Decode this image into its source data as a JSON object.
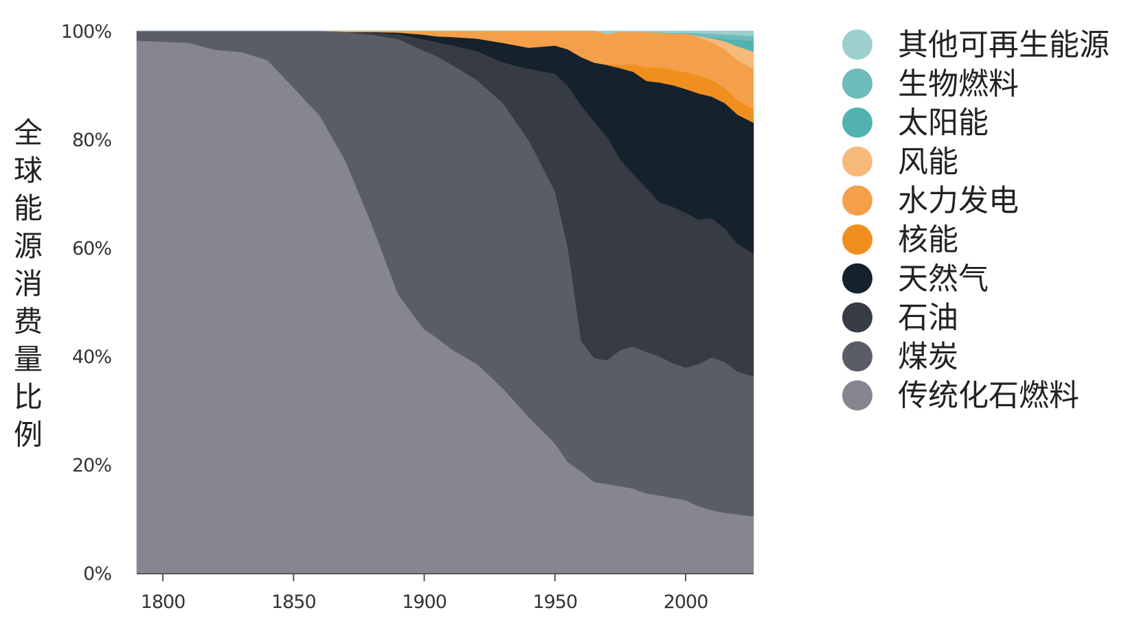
{
  "chart_data": {
    "type": "area",
    "stacked": true,
    "normalized": true,
    "title": "",
    "xlabel": "",
    "ylabel": "全球能源消费量比例",
    "xlim": [
      1790,
      2026
    ],
    "ylim": [
      0,
      100
    ],
    "x_ticks": [
      1800,
      1850,
      1900,
      1950,
      2000
    ],
    "x_tick_labels": [
      "1800",
      "1850",
      "1900",
      "1950",
      "2000"
    ],
    "y_ticks": [
      0,
      20,
      40,
      60,
      80,
      100
    ],
    "y_tick_labels": [
      "0%",
      "20%",
      "40%",
      "60%",
      "80%",
      "100%"
    ],
    "grid": false,
    "legend_position": "right",
    "x": [
      1790,
      1800,
      1810,
      1820,
      1830,
      1840,
      1850,
      1860,
      1870,
      1880,
      1890,
      1900,
      1905,
      1910,
      1920,
      1930,
      1940,
      1950,
      1955,
      1960,
      1965,
      1970,
      1975,
      1980,
      1985,
      1990,
      1995,
      2000,
      2005,
      2010,
      2015,
      2020,
      2026
    ],
    "series": [
      {
        "name": "传统化石燃料",
        "color": "#868690",
        "values": [
          98.2,
          98,
          97.8,
          96.5,
          96.1,
          94.6,
          89.5,
          84.3,
          75.9,
          64.2,
          51.4,
          44.9,
          43.3,
          41.4,
          38.6,
          34.1,
          28.7,
          23.9,
          20.4,
          17.9,
          15.8,
          15.1,
          14.4,
          14.0,
          13.5,
          13.2,
          12.9,
          12.5,
          11.5,
          10.9,
          10.4,
          10.1,
          9.8
        ]
      },
      {
        "name": "煤炭",
        "color": "#5b5d66",
        "values": [
          1.8,
          2.0,
          2.2,
          3.5,
          3.9,
          5.4,
          10.5,
          15.6,
          23.8,
          35.1,
          47.1,
          51.4,
          52.0,
          52.5,
          52.4,
          52.6,
          51.1,
          46.5,
          39.5,
          23.0,
          21.5,
          21.0,
          22.6,
          23.6,
          24.0,
          23.7,
          23.1,
          22.8,
          24.6,
          26.5,
          26.1,
          24.6,
          24.2
        ]
      },
      {
        "name": "石油",
        "color": "#363b44",
        "values": [
          0,
          0,
          0,
          0,
          0,
          0,
          0,
          0,
          0.1,
          0.4,
          0.9,
          2.1,
          2.6,
          3.5,
          5.3,
          7.5,
          13.2,
          21.7,
          29.9,
          41.5,
          41.0,
          37.9,
          31.6,
          28.6,
          27.8,
          26.3,
          26.8,
          26.6,
          24.9,
          24.1,
          23.1,
          22.0,
          21.3
        ]
      },
      {
        "name": "天然气",
        "color": "#15212d",
        "values": [
          0,
          0,
          0,
          0,
          0,
          0,
          0,
          0,
          0,
          0.1,
          0.3,
          0.9,
          1.1,
          1.5,
          2.3,
          3.6,
          3.9,
          5.2,
          6.8,
          8.5,
          10.3,
          12.2,
          15.2,
          17.0,
          18.2,
          20.4,
          20.9,
          21.3,
          21.8,
          21.1,
          21.7,
          22.3,
          22.6
        ]
      },
      {
        "name": "核能",
        "color": "#f18f1e",
        "values": [
          0,
          0,
          0,
          0,
          0,
          0,
          0,
          0,
          0,
          0,
          0,
          0,
          0,
          0,
          0,
          0,
          0,
          0,
          0,
          0,
          0,
          0.1,
          0.6,
          1.3,
          2.3,
          2.6,
          2.6,
          2.9,
          3.1,
          2.9,
          2.6,
          2.5,
          2.4
        ]
      },
      {
        "name": "水力发电",
        "color": "#f4a04a",
        "values": [
          0,
          0,
          0,
          0,
          0,
          0,
          0,
          0,
          0.2,
          0.2,
          0.3,
          0.7,
          1.0,
          1.1,
          1.4,
          2.2,
          3.1,
          2.7,
          3.4,
          4.6,
          5.5,
          5.2,
          5.5,
          5.3,
          6.0,
          5.9,
          6.2,
          6.6,
          6.6,
          6.5,
          6.7,
          6.9,
          6.9
        ]
      },
      {
        "name": "风能",
        "color": "#f7b97a",
        "values": [
          0,
          0,
          0,
          0,
          0,
          0,
          0,
          0,
          0,
          0,
          0,
          0,
          0,
          0,
          0,
          0,
          0,
          0,
          0,
          0,
          0,
          0,
          0,
          0,
          0,
          0,
          0,
          0,
          0.2,
          0.7,
          1.4,
          2.4,
          3.0
        ]
      },
      {
        "name": "太阳能",
        "color": "#51b2b0",
        "values": [
          0,
          0,
          0,
          0,
          0,
          0,
          0,
          0,
          0,
          0,
          0,
          0,
          0,
          0,
          0,
          0,
          0,
          0,
          0,
          0,
          0,
          0,
          0,
          0,
          0,
          0,
          0,
          0,
          0,
          0.2,
          0.4,
          1.2,
          1.8
        ]
      },
      {
        "name": "生物燃料",
        "color": "#6dbcb9",
        "values": [
          0,
          0,
          0,
          0,
          0,
          0,
          0,
          0,
          0,
          0,
          0,
          0,
          0,
          0,
          0,
          0,
          0,
          0,
          0,
          0,
          0,
          0,
          0,
          0,
          0,
          0.1,
          0.1,
          0.2,
          0.5,
          0.6,
          0.8,
          0.8,
          0.9
        ]
      },
      {
        "name": "其他可再生能源",
        "color": "#9ccfcd",
        "values": [
          0,
          0,
          0,
          0,
          0,
          0,
          0,
          0,
          0,
          0,
          0,
          0,
          0,
          0,
          0,
          0,
          0,
          0,
          0,
          0,
          0,
          0.5,
          0.1,
          0.2,
          0.2,
          0.2,
          0.4,
          0.3,
          0.4,
          0.5,
          0.6,
          0.7,
          0.9
        ]
      }
    ],
    "legend_order": [
      "其他可再生能源",
      "生物燃料",
      "太阳能",
      "风能",
      "水力发电",
      "核能",
      "天然气",
      "石油",
      "煤炭",
      "传统化石燃料"
    ]
  }
}
